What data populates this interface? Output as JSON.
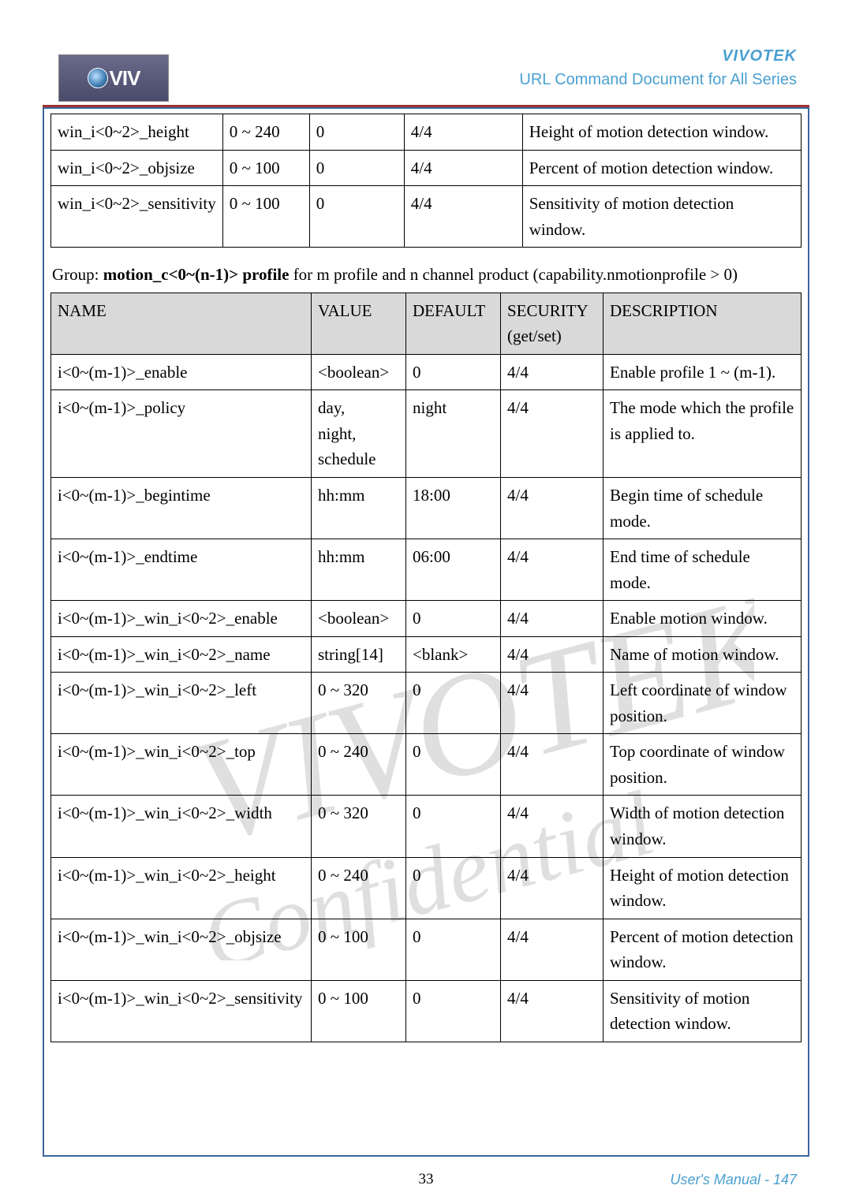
{
  "header": {
    "brand": "VIVOTEK",
    "doc_title": "URL Command Document for All Series",
    "logo_text": "VIV"
  },
  "table1": {
    "rows": [
      {
        "name": "win_i<0~2>_height",
        "value": "0 ~ 240",
        "default": "0",
        "security": "4/4",
        "desc": "Height of motion detection window."
      },
      {
        "name": "win_i<0~2>_objsize",
        "value": "0 ~ 100",
        "default": "0",
        "security": "4/4",
        "desc": "Percent of motion detection window."
      },
      {
        "name": "win_i<0~2>_sensitivity",
        "value": "0 ~ 100",
        "default": "0",
        "security": "4/4",
        "desc": "Sensitivity of motion detection window."
      }
    ]
  },
  "group_text": {
    "prefix": "Group: ",
    "bold": "motion_c<0~(n-1)> profile",
    "suffix": " for m profile and n channel product (capability.nmotionprofile > 0)"
  },
  "table2": {
    "headers": {
      "name": "NAME",
      "value": "VALUE",
      "default": "DEFAULT",
      "security": "SECURITY (get/set)",
      "desc": "DESCRIPTION"
    },
    "rows": [
      {
        "name": "i<0~(m-1)>_enable",
        "value": "<boolean>",
        "default": "0",
        "security": "4/4",
        "desc": "Enable profile 1 ~ (m-1)."
      },
      {
        "name": "i<0~(m-1)>_policy",
        "value": "day,\nnight,\nschedule",
        "default": "night",
        "security": "4/4",
        "desc": "The mode which the profile is applied to."
      },
      {
        "name": "i<0~(m-1)>_begintime",
        "value": "hh:mm",
        "default": "18:00",
        "security": "4/4",
        "desc": "Begin time of schedule mode."
      },
      {
        "name": "i<0~(m-1)>_endtime",
        "value": "hh:mm",
        "default": "06:00",
        "security": "4/4",
        "desc": "End time of schedule mode."
      },
      {
        "name": "i<0~(m-1)>_win_i<0~2>_enable",
        "value": "<boolean>",
        "default": "0",
        "security": "4/4",
        "desc": "Enable motion window."
      },
      {
        "name": "i<0~(m-1)>_win_i<0~2>_name",
        "value": "string[14]",
        "default": "<blank>",
        "security": "4/4",
        "desc": "Name of motion window."
      },
      {
        "name": "i<0~(m-1)>_win_i<0~2>_left",
        "value": "0 ~ 320",
        "default": "0",
        "security": "4/4",
        "desc": "Left coordinate of window position."
      },
      {
        "name": "i<0~(m-1)>_win_i<0~2>_top",
        "value": "0 ~ 240",
        "default": "0",
        "security": "4/4",
        "desc": "Top coordinate of window position."
      },
      {
        "name": "i<0~(m-1)>_win_i<0~2>_width",
        "value": "0 ~ 320",
        "default": "0",
        "security": "4/4",
        "desc": "Width of motion detection window."
      },
      {
        "name": "i<0~(m-1)>_win_i<0~2>_height",
        "value": "0 ~ 240",
        "default": "0",
        "security": "4/4",
        "desc": "Height of motion detection window."
      },
      {
        "name": "i<0~(m-1)>_win_i<0~2>_objsize",
        "value": "0 ~ 100",
        "default": "0",
        "security": "4/4",
        "desc": "Percent of motion detection window."
      },
      {
        "name": "i<0~(m-1)>_win_i<0~2>_sensitivity",
        "value": "0 ~ 100",
        "default": "0",
        "security": "4/4",
        "desc": "Sensitivity of motion detection window."
      }
    ]
  },
  "footer": {
    "page_num": "33",
    "right_text": "User's Manual - 147"
  },
  "colors": {
    "border_blue": "#3b66a0",
    "header_red": "#a03030",
    "brand_blue": "#4aa0d0",
    "header_gray": "#d9d9d9"
  }
}
